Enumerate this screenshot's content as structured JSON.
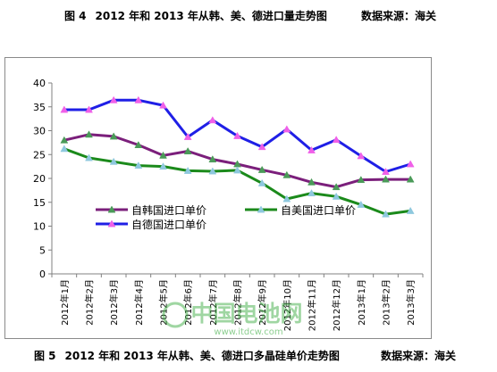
{
  "captions": {
    "top": {
      "number": "图 4",
      "title": "2012 年和 2013 年从韩、美、德进口量走势图",
      "source": "数据来源：海关"
    },
    "bottom": {
      "number": "图 5",
      "title": "2012 年和 2013 年从韩、美、德进口多晶硅单价走势图",
      "source": "数据来源：海关"
    }
  },
  "watermark": {
    "text": "中国电池网",
    "url": "www.itdcw.com"
  },
  "chart_data": {
    "type": "line",
    "categories": [
      "2012年1月",
      "2012年2月",
      "2012年3月",
      "2012年4月",
      "2012年5月",
      "2012年6月",
      "2012年7月",
      "2012年8月",
      "2012年9月",
      "2012年10月",
      "2012年11月",
      "2012年12月",
      "2013年1月",
      "2013年2月",
      "2013年3月"
    ],
    "ylim": [
      0,
      40
    ],
    "yticks": [
      "0",
      "5",
      "10",
      "15",
      "20",
      "25",
      "30",
      "35",
      "40"
    ],
    "grid": false,
    "legend_position": "center",
    "series": [
      {
        "name": "自韩国进口单价",
        "color": "#7b1f7b",
        "marker": "triangle",
        "marker_color": "#4a9a58",
        "values": [
          28.0,
          29.2,
          28.8,
          27.0,
          24.8,
          25.7,
          24.0,
          23.0,
          21.8,
          20.7,
          19.2,
          18.2,
          19.7,
          19.8,
          19.8
        ]
      },
      {
        "name": "自美国进口单价",
        "color": "#1b8a1b",
        "marker": "triangle",
        "marker_color": "#8ec8de",
        "values": [
          26.2,
          24.3,
          23.5,
          22.7,
          22.5,
          21.6,
          21.5,
          21.7,
          19.0,
          15.7,
          16.9,
          16.2,
          14.5,
          12.5,
          13.2
        ]
      },
      {
        "name": "自德国进口单价",
        "color": "#1f1fe6",
        "marker": "triangle",
        "marker_color": "#f060e8",
        "values": [
          34.4,
          34.4,
          36.4,
          36.4,
          35.3,
          28.7,
          32.2,
          28.9,
          26.6,
          30.3,
          25.9,
          28.1,
          24.7,
          21.4,
          23.0
        ]
      }
    ]
  }
}
